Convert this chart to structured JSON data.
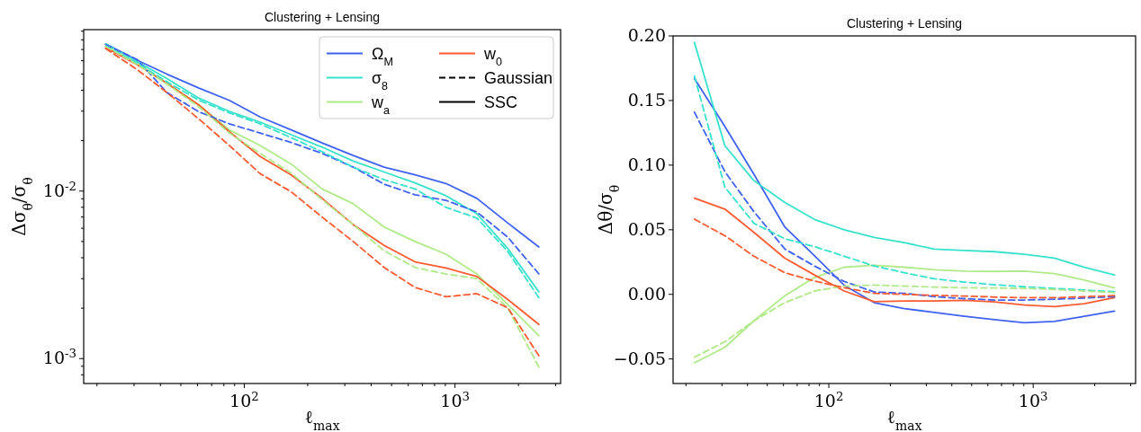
{
  "chart_data": [
    {
      "type": "line",
      "title": "Clustering + Lensing",
      "xlabel": "ℓ$_{max}$",
      "ylabel": "Δσ$_{θ}$/σ$_{θ}$",
      "log": "xy",
      "legend": "top right",
      "x": [
        22,
        31,
        43,
        61,
        85,
        119,
        167,
        234,
        329,
        461,
        646,
        906,
        1270,
        1782,
        2500
      ],
      "xlim": [
        17.3,
        3170
      ],
      "ylim": [
        0.00071,
        0.092
      ],
      "xticks": [
        {
          "value": 20,
          "label": null
        },
        {
          "value": 30,
          "label": null
        },
        {
          "value": 40,
          "label": null
        },
        {
          "value": 50,
          "label": null
        },
        {
          "value": 60,
          "label": null
        },
        {
          "value": 70,
          "label": null
        },
        {
          "value": 80,
          "label": null
        },
        {
          "value": 90,
          "label": null
        },
        {
          "value": 100,
          "label": "10$^{2}$"
        },
        {
          "value": 200,
          "label": null
        },
        {
          "value": 300,
          "label": null
        },
        {
          "value": 400,
          "label": null
        },
        {
          "value": 500,
          "label": null
        },
        {
          "value": 600,
          "label": null
        },
        {
          "value": 700,
          "label": null
        },
        {
          "value": 800,
          "label": null
        },
        {
          "value": 900,
          "label": null
        },
        {
          "value": 1000,
          "label": "10$^{3}$"
        },
        {
          "value": 2000,
          "label": null
        },
        {
          "value": 3000,
          "label": null
        }
      ],
      "yticks": [
        {
          "value": 0.0008,
          "label": null
        },
        {
          "value": 0.0009,
          "label": null
        },
        {
          "value": 0.001,
          "label": "10$^{-3}$"
        },
        {
          "value": 0.002,
          "label": null
        },
        {
          "value": 0.003,
          "label": null
        },
        {
          "value": 0.004,
          "label": null
        },
        {
          "value": 0.005,
          "label": null
        },
        {
          "value": 0.006,
          "label": null
        },
        {
          "value": 0.007,
          "label": null
        },
        {
          "value": 0.008,
          "label": null
        },
        {
          "value": 0.009,
          "label": null
        },
        {
          "value": 0.01,
          "label": "10$^{-2}$"
        },
        {
          "value": 0.02,
          "label": null
        },
        {
          "value": 0.03,
          "label": null
        },
        {
          "value": 0.04,
          "label": null
        },
        {
          "value": 0.05,
          "label": null
        },
        {
          "value": 0.06,
          "label": null
        },
        {
          "value": 0.07,
          "label": null
        },
        {
          "value": 0.08,
          "label": null
        },
        {
          "value": 0.09,
          "label": null
        }
      ],
      "series": [
        {
          "name": "Ω$_{M}$",
          "color": "#4062f3",
          "line_style": "solid",
          "values": [
            0.0757,
            0.0605,
            0.0499,
            0.0412,
            0.0348,
            0.0277,
            0.0232,
            0.0194,
            0.0163,
            0.0139,
            0.0125,
            0.0111,
            0.00905,
            0.00644,
            0.00464
          ]
        },
        {
          "name": "σ$_{8}$",
          "color": "#36e2cc",
          "line_style": "solid",
          "values": [
            0.0757,
            0.0593,
            0.0469,
            0.0358,
            0.0299,
            0.0258,
            0.0217,
            0.0183,
            0.0151,
            0.013,
            0.0112,
            0.00938,
            0.00732,
            0.00453,
            0.0025
          ]
        },
        {
          "name": "w$_{a}$",
          "color": "#b0ea88",
          "line_style": "solid",
          "values": [
            0.0735,
            0.058,
            0.044,
            0.0326,
            0.0232,
            0.0187,
            0.0145,
            0.0103,
            0.0084,
            0.0061,
            0.005,
            0.0042,
            0.0032,
            0.0021,
            0.00137
          ]
        },
        {
          "name": "w$_{0}$",
          "color": "#ff5a30",
          "line_style": "solid",
          "values": [
            0.0718,
            0.0568,
            0.044,
            0.0326,
            0.0226,
            0.0161,
            0.0125,
            0.00905,
            0.0063,
            0.00474,
            0.00378,
            0.00347,
            0.00309,
            0.00225,
            0.0016
          ]
        },
        {
          "name": "Gaussian",
          "color": "#000000",
          "line_style": "dashed",
          "values": [
            null,
            null,
            null,
            null,
            null,
            null,
            null,
            null,
            null,
            null,
            null,
            null,
            null,
            null,
            null
          ]
        },
        {
          "name": "SSC",
          "color": "#000000",
          "line_style": "solid",
          "values": [
            null,
            null,
            null,
            null,
            null,
            null,
            null,
            null,
            null,
            null,
            null,
            null,
            null,
            null,
            null
          ]
        },
        {
          "color": "#4062f3",
          "line_style": "dashed",
          "values": [
            0.0748,
            0.061,
            0.0387,
            0.0297,
            0.0252,
            0.0222,
            0.0195,
            0.0168,
            0.0139,
            0.011,
            0.0095,
            0.0088,
            0.0075,
            0.0053,
            0.0032
          ]
        },
        {
          "color": "#36e2cc",
          "line_style": "dashed",
          "values": [
            0.0735,
            0.058,
            0.0449,
            0.0348,
            0.0293,
            0.0252,
            0.0208,
            0.0172,
            0.0139,
            0.0117,
            0.0103,
            0.008,
            0.0069,
            0.00435,
            0.00231
          ]
        },
        {
          "color": "#b0ea88",
          "line_style": "dashed",
          "values": [
            0.073,
            0.057,
            0.0435,
            0.0318,
            0.0222,
            0.0168,
            0.0128,
            0.0089,
            0.0063,
            0.0044,
            0.0035,
            0.0032,
            0.003,
            0.002,
            0.00089
          ]
        },
        {
          "color": "#ff5a30",
          "line_style": "dashed",
          "values": [
            0.0709,
            0.0532,
            0.0387,
            0.0269,
            0.0187,
            0.0127,
            0.0099,
            0.007,
            0.005,
            0.0035,
            0.00266,
            0.00234,
            0.00244,
            0.00201,
            0.00104
          ]
        }
      ]
    },
    {
      "type": "line",
      "title": "Clustering + Lensing",
      "xlabel": "ℓ$_{max}$",
      "ylabel": "Δθ/σ$_{θ}$",
      "log": "x",
      "x": [
        22,
        31,
        43,
        61,
        85,
        119,
        167,
        234,
        329,
        461,
        646,
        906,
        1270,
        1782,
        2500
      ],
      "xlim": [
        17.3,
        3170
      ],
      "ylim": [
        -0.069,
        0.2
      ],
      "xticks": [
        {
          "value": 20,
          "label": null
        },
        {
          "value": 30,
          "label": null
        },
        {
          "value": 40,
          "label": null
        },
        {
          "value": 50,
          "label": null
        },
        {
          "value": 60,
          "label": null
        },
        {
          "value": 70,
          "label": null
        },
        {
          "value": 80,
          "label": null
        },
        {
          "value": 90,
          "label": null
        },
        {
          "value": 100,
          "label": "10$^{2}$"
        },
        {
          "value": 200,
          "label": null
        },
        {
          "value": 300,
          "label": null
        },
        {
          "value": 400,
          "label": null
        },
        {
          "value": 500,
          "label": null
        },
        {
          "value": 600,
          "label": null
        },
        {
          "value": 700,
          "label": null
        },
        {
          "value": 800,
          "label": null
        },
        {
          "value": 900,
          "label": null
        },
        {
          "value": 1000,
          "label": "10$^{3}$"
        },
        {
          "value": 2000,
          "label": null
        },
        {
          "value": 3000,
          "label": null
        }
      ],
      "yticks": [
        {
          "value": -0.05,
          "label": "−0.05"
        },
        {
          "value": 0,
          "label": "0.00"
        },
        {
          "value": 0.05,
          "label": "0.05"
        },
        {
          "value": 0.1,
          "label": "0.10"
        },
        {
          "value": 0.15,
          "label": "0.15"
        },
        {
          "value": 0.2,
          "label": "0.20"
        }
      ],
      "series": [
        {
          "color": "#4062f3",
          "line_style": "solid",
          "values": [
            0.167,
            0.13,
            0.093,
            0.052,
            0.03,
            0.007,
            -0.0065,
            -0.011,
            -0.014,
            -0.017,
            -0.0195,
            -0.022,
            -0.021,
            -0.017,
            -0.013
          ]
        },
        {
          "color": "#36e2cc",
          "line_style": "solid",
          "values": [
            0.195,
            0.115,
            0.088,
            0.071,
            0.058,
            0.05,
            0.044,
            0.04,
            0.035,
            0.034,
            0.033,
            0.031,
            0.028,
            0.021,
            0.015
          ]
        },
        {
          "color": "#b0ea88",
          "line_style": "solid",
          "values": [
            -0.053,
            -0.041,
            -0.0205,
            -0.001,
            0.013,
            0.021,
            0.0225,
            0.021,
            0.019,
            0.018,
            0.0177,
            0.018,
            0.016,
            0.011,
            0.005
          ]
        },
        {
          "color": "#ff5a30",
          "line_style": "solid",
          "values": [
            0.0744,
            0.066,
            0.048,
            0.028,
            0.015,
            0.0026,
            -0.0056,
            -0.0051,
            -0.0051,
            -0.0046,
            -0.0059,
            -0.0082,
            -0.0095,
            -0.0072,
            -0.0026
          ]
        },
        {
          "color": "#4062f3",
          "line_style": "dashed",
          "values": [
            0.141,
            0.095,
            0.064,
            0.035,
            0.022,
            0.01,
            0.0018,
            0.0008,
            -0.0018,
            -0.0033,
            -0.0044,
            -0.0044,
            -0.0038,
            -0.0028,
            -0.0018
          ]
        },
        {
          "color": "#36e2cc",
          "line_style": "dashed",
          "values": [
            0.169,
            0.083,
            0.055,
            0.043,
            0.037,
            0.0295,
            0.022,
            0.0167,
            0.012,
            0.0095,
            0.0074,
            0.0059,
            0.0046,
            0.0033,
            0.0021
          ]
        },
        {
          "color": "#b0ea88",
          "line_style": "dashed",
          "values": [
            -0.0487,
            -0.0367,
            -0.0205,
            -0.0064,
            0.0026,
            0.0064,
            0.0072,
            0.0064,
            0.0056,
            0.0051,
            0.0049,
            0.0046,
            0.0038,
            0.0026,
            0.0013
          ]
        },
        {
          "color": "#ff5a30",
          "line_style": "dashed",
          "values": [
            0.0582,
            0.0454,
            0.0295,
            0.0167,
            0.0103,
            0.0051,
            0.0008,
            0,
            -0.0008,
            -0.0013,
            -0.0021,
            -0.0026,
            -0.0026,
            -0.0018,
            -0.001
          ]
        }
      ]
    }
  ]
}
